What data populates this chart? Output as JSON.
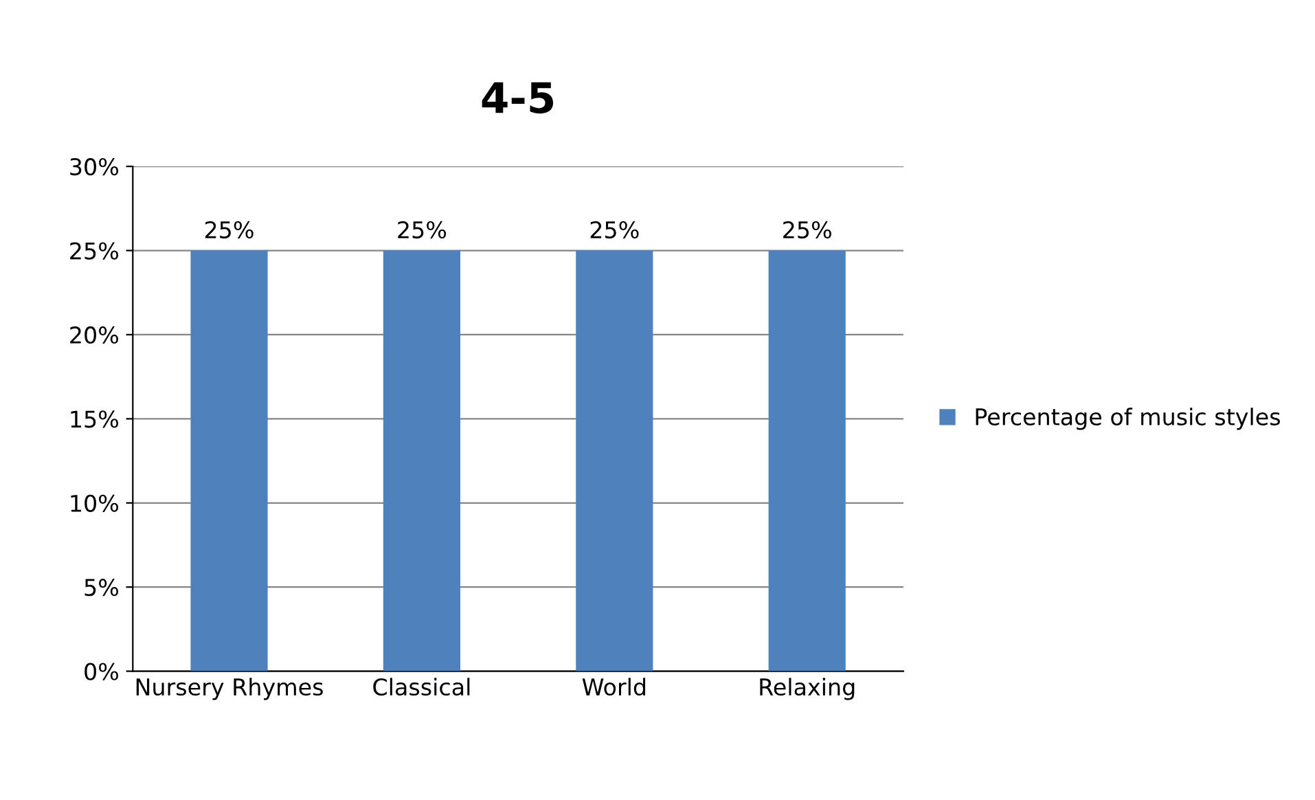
{
  "chart_data": {
    "type": "bar",
    "title": "4-5",
    "categories": [
      "Nursery Rhymes",
      "Classical",
      "World",
      "Relaxing"
    ],
    "series": [
      {
        "name": "Percentage of music styles",
        "color": "#4f81bd",
        "values": [
          25,
          25,
          25,
          25
        ],
        "value_labels": [
          "25%",
          "25%",
          "25%",
          "25%"
        ]
      }
    ],
    "ylim": [
      0,
      30
    ],
    "yticks": [
      {
        "value": 0,
        "label": "0%"
      },
      {
        "value": 5,
        "label": "5%"
      },
      {
        "value": 10,
        "label": "10%"
      },
      {
        "value": 15,
        "label": "15%"
      },
      {
        "value": 20,
        "label": "20%"
      },
      {
        "value": 25,
        "label": "25%"
      },
      {
        "value": 30,
        "label": "30%"
      }
    ],
    "grid": "y",
    "legend": "right"
  }
}
